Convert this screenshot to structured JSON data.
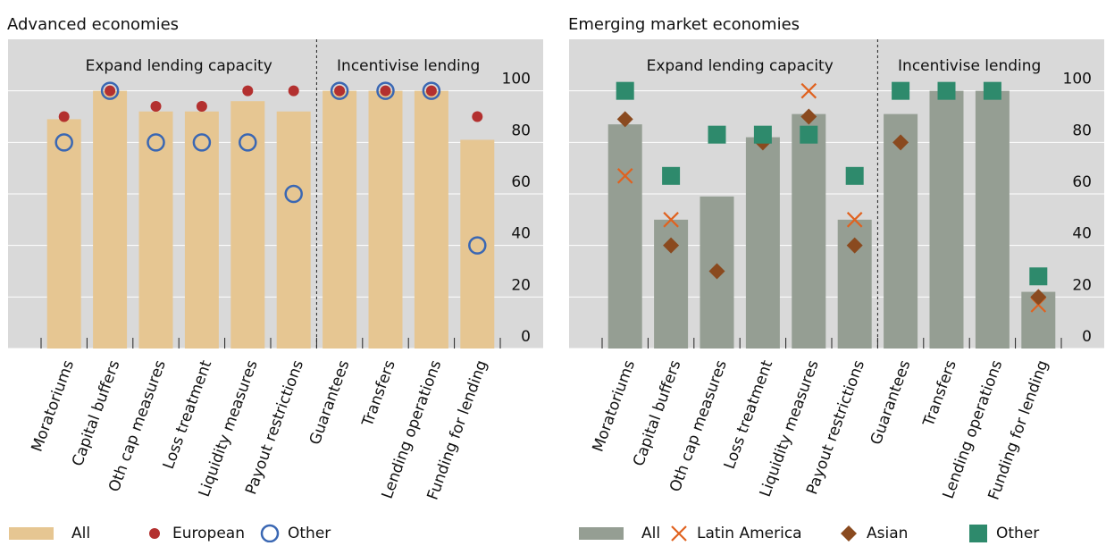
{
  "chart_data": [
    {
      "type": "bar",
      "title": "Advanced economies",
      "annotations": [
        "Expand lending capacity",
        "Incentivise lending"
      ],
      "categories": [
        "Moratoriums",
        "Capital buffers",
        "Oth cap measures",
        "Loss treatment",
        "Liquidity measures",
        "Payout restrictions",
        "Guarantees",
        "Transfers",
        "Lending operations",
        "Funding for lending"
      ],
      "series": [
        {
          "name": "All",
          "style": "bar",
          "color": "#e6c692",
          "values": [
            89,
            100,
            92,
            92,
            96,
            92,
            100,
            100,
            100,
            81
          ]
        },
        {
          "name": "European",
          "style": "dot",
          "color": "#b3302f",
          "values": [
            90,
            100,
            94,
            94,
            100,
            100,
            100,
            100,
            100,
            90
          ]
        },
        {
          "name": "Other",
          "style": "ring",
          "color": "#3a67b3",
          "values": [
            80,
            100,
            80,
            80,
            80,
            60,
            100,
            100,
            100,
            40
          ]
        }
      ],
      "ylim": [
        0,
        120
      ],
      "yticks": [
        0,
        20,
        40,
        60,
        80,
        100
      ],
      "grid": true
    },
    {
      "type": "bar",
      "title": "Emerging market economies",
      "annotations": [
        "Expand lending capacity",
        "Incentivise lending"
      ],
      "categories": [
        "Moratoriums",
        "Capital buffers",
        "Oth cap measures",
        "Loss treatment",
        "Liquidity measures",
        "Payout restrictions",
        "Guarantees",
        "Transfers",
        "Lending operations",
        "Funding for lending"
      ],
      "series": [
        {
          "name": "All",
          "style": "bar",
          "color": "#959e93",
          "values": [
            87,
            50,
            59,
            82,
            91,
            50,
            91,
            100,
            100,
            22
          ]
        },
        {
          "name": "Latin America",
          "style": "cross",
          "color": "#e0621f",
          "values": [
            67,
            50,
            83,
            83,
            100,
            50,
            100,
            100,
            100,
            17
          ]
        },
        {
          "name": "Asian",
          "style": "diamond",
          "color": "#8a4a1f",
          "values": [
            89,
            40,
            30,
            80,
            90,
            40,
            80,
            100,
            100,
            20
          ]
        },
        {
          "name": "Other",
          "style": "square",
          "color": "#2e8a6c",
          "values": [
            100,
            67,
            83,
            83,
            83,
            67,
            100,
            100,
            100,
            28
          ]
        }
      ],
      "ylim": [
        0,
        120
      ],
      "yticks": [
        0,
        20,
        40,
        60,
        80,
        100
      ],
      "grid": true
    }
  ]
}
